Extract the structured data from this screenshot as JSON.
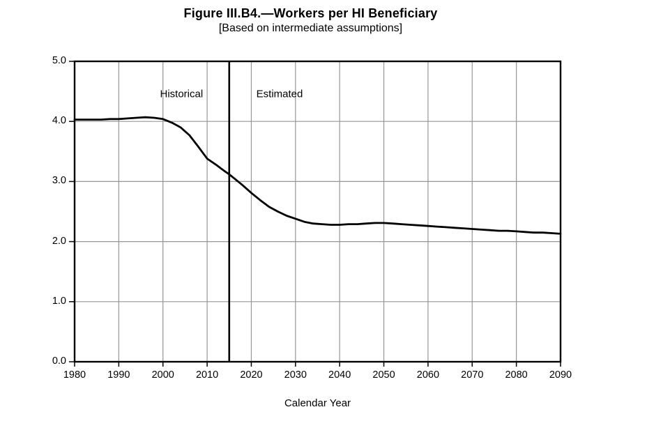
{
  "figure": {
    "title": "Figure III.B4.—Workers per HI Beneficiary",
    "subtitle": "[Based on intermediate assumptions]"
  },
  "chart_data": {
    "type": "line",
    "title": "Figure III.B4.—Workers per HI Beneficiary",
    "subtitle": "[Based on intermediate assumptions]",
    "xlabel": "Calendar Year",
    "ylabel": "",
    "xlim": [
      1980,
      2090
    ],
    "ylim": [
      0.0,
      5.0
    ],
    "x_ticks": [
      1980,
      1990,
      2000,
      2010,
      2020,
      2030,
      2040,
      2050,
      2060,
      2070,
      2080,
      2090
    ],
    "y_ticks": [
      "0.0",
      "1.0",
      "2.0",
      "3.0",
      "4.0",
      "5.0"
    ],
    "grid": true,
    "legend": "none",
    "separator_x": 2015,
    "annotations": [
      {
        "text": "Historical",
        "x": 2004.2,
        "y": 4.45
      },
      {
        "text": "Estimated",
        "x": 2026.4,
        "y": 4.45
      }
    ],
    "series": [
      {
        "name": "Workers per HI beneficiary",
        "color": "#000000",
        "x": [
          1980,
          1982,
          1984,
          1986,
          1988,
          1990,
          1992,
          1994,
          1996,
          1998,
          2000,
          2002,
          2004,
          2006,
          2008,
          2010,
          2012,
          2014,
          2015,
          2016,
          2018,
          2020,
          2022,
          2024,
          2026,
          2028,
          2030,
          2032,
          2034,
          2036,
          2038,
          2040,
          2042,
          2044,
          2046,
          2048,
          2050,
          2052,
          2054,
          2056,
          2058,
          2060,
          2062,
          2064,
          2066,
          2068,
          2070,
          2072,
          2074,
          2076,
          2078,
          2080,
          2082,
          2084,
          2086,
          2088,
          2090
        ],
        "values": [
          4.03,
          4.03,
          4.03,
          4.03,
          4.04,
          4.04,
          4.05,
          4.06,
          4.07,
          4.06,
          4.04,
          3.98,
          3.9,
          3.77,
          3.58,
          3.38,
          3.28,
          3.17,
          3.12,
          3.06,
          2.94,
          2.81,
          2.69,
          2.58,
          2.5,
          2.43,
          2.38,
          2.33,
          2.3,
          2.29,
          2.28,
          2.28,
          2.29,
          2.29,
          2.3,
          2.31,
          2.31,
          2.3,
          2.29,
          2.28,
          2.27,
          2.26,
          2.25,
          2.24,
          2.23,
          2.22,
          2.21,
          2.2,
          2.19,
          2.18,
          2.18,
          2.17,
          2.16,
          2.15,
          2.15,
          2.14,
          2.13
        ]
      }
    ]
  },
  "colors": {
    "grid": "#969696",
    "axis": "#000000",
    "line": "#000000",
    "text": "#000000",
    "background": "#ffffff"
  }
}
